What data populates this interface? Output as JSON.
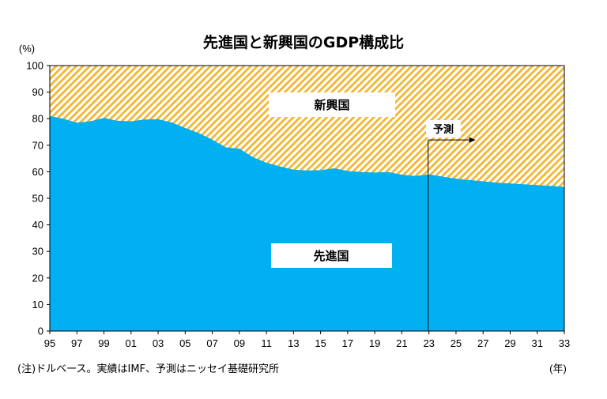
{
  "chart_data": {
    "type": "area",
    "title": "先進国と新興国のGDP構成比",
    "ylabel": "(%)",
    "xlabel": "(年)",
    "ylim": [
      0,
      100
    ],
    "yticks": [
      "0",
      "10",
      "20",
      "30",
      "40",
      "50",
      "60",
      "70",
      "80",
      "90",
      "100"
    ],
    "xticks": [
      "95",
      "97",
      "99",
      "01",
      "03",
      "05",
      "07",
      "09",
      "11",
      "13",
      "15",
      "17",
      "19",
      "21",
      "23",
      "25",
      "27",
      "29",
      "31",
      "33"
    ],
    "x": [
      1995,
      1996,
      1997,
      1998,
      1999,
      2000,
      2001,
      2002,
      2003,
      2004,
      2005,
      2006,
      2007,
      2008,
      2009,
      2010,
      2011,
      2012,
      2013,
      2014,
      2015,
      2016,
      2017,
      2018,
      2019,
      2020,
      2021,
      2022,
      2023,
      2024,
      2025,
      2026,
      2027,
      2028,
      2029,
      2030,
      2031,
      2032,
      2033
    ],
    "series": [
      {
        "name": "先進国",
        "color": "#00b0f0",
        "values": [
          81.0,
          80.0,
          78.5,
          79.0,
          80.3,
          79.2,
          79.0,
          79.7,
          79.8,
          78.6,
          76.5,
          74.6,
          72.1,
          69.2,
          68.7,
          65.5,
          63.4,
          62.0,
          60.8,
          60.5,
          60.6,
          61.3,
          60.3,
          59.9,
          59.7,
          59.9,
          58.9,
          58.4,
          59.0,
          58.2,
          57.4,
          56.9,
          56.4,
          55.9,
          55.6,
          55.3,
          55.0,
          54.7,
          54.3
        ]
      },
      {
        "name": "新興国",
        "color": "#f2b632",
        "values": [
          19.0,
          20.0,
          21.5,
          21.0,
          19.7,
          20.8,
          21.0,
          20.3,
          20.2,
          21.4,
          23.5,
          25.4,
          27.9,
          30.8,
          31.3,
          34.5,
          36.6,
          38.0,
          39.2,
          39.5,
          39.4,
          38.7,
          39.7,
          40.1,
          40.3,
          40.1,
          41.1,
          41.6,
          41.0,
          41.8,
          42.6,
          43.1,
          43.6,
          44.1,
          44.4,
          44.7,
          45.0,
          45.3,
          45.7
        ]
      }
    ],
    "forecast_label": "予測",
    "forecast_start": 2023,
    "note": "(注)ドルベース。実績はIMF、予測はニッセイ基礎研究所"
  }
}
